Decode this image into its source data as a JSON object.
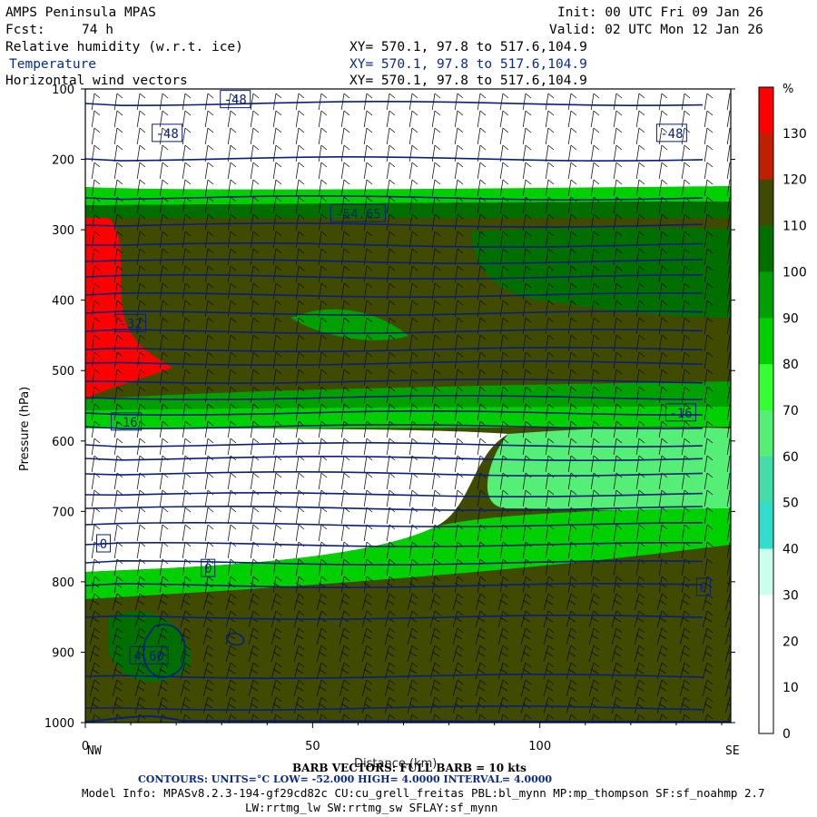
{
  "header": {
    "model": "AMPS Peninsula MPAS",
    "init": "Init: 00 UTC Fri 09 Jan 26",
    "fcst_label": "Fcst:",
    "fcst_value": "74 h",
    "valid": "Valid: 02 UTC Mon 12 Jan 26",
    "fields": [
      {
        "name": "Relative humidity (w.r.t. ice)",
        "xy": "XY= 570.1, 97.8 to 517.6,104.9"
      },
      {
        "name": "Temperature",
        "xy": "XY= 570.1, 97.8 to 517.6,104.9"
      },
      {
        "name": "Horizontal wind vectors",
        "xy": "XY= 570.1, 97.8 to 517.6,104.9"
      }
    ]
  },
  "chart_data": {
    "type": "heatmap",
    "ylabel": "Pressure (hPa)",
    "xlabel": "Distance (km)",
    "x_ticks": [
      "0",
      "50",
      "100"
    ],
    "y_ticks": [
      "100",
      "200",
      "300",
      "400",
      "500",
      "600",
      "700",
      "800",
      "900",
      "1000"
    ],
    "xlim": [
      0,
      142
    ],
    "ylim": [
      1000,
      100
    ],
    "left_end": "NW",
    "right_end": "SE",
    "colorbar": {
      "unit": "%",
      "levels": [
        "130",
        "120",
        "110",
        "100",
        "90",
        "80",
        "70",
        "60",
        "50",
        "40",
        "30",
        "20",
        "10",
        "0"
      ],
      "colors": [
        "#ff0000",
        "#c02000",
        "#404a00",
        "#006f00",
        "#00a000",
        "#00d000",
        "#33ff33",
        "#55ee77",
        "#44ddaa",
        "#33ddcc",
        "#ccffee",
        "#ffffff",
        "#ffffff",
        "#ffffff"
      ]
    },
    "temperature_contour_labels": [
      {
        "text": "-48",
        "x": 33,
        "p": 115
      },
      {
        "text": "-48",
        "x": 18,
        "p": 163
      },
      {
        "text": "-48",
        "x": 129,
        "p": 163
      },
      {
        "text": "-54.65",
        "x": 60,
        "p": 277
      },
      {
        "text": "-32",
        "x": 10,
        "p": 433
      },
      {
        "text": "-16",
        "x": 9,
        "p": 573
      },
      {
        "text": "-16",
        "x": 131,
        "p": 560
      },
      {
        "text": "0",
        "x": 4,
        "p": 746
      },
      {
        "text": "0",
        "x": 27,
        "p": 781
      },
      {
        "text": "0",
        "x": 136,
        "p": 808
      },
      {
        "text": "4.60",
        "x": 14,
        "p": 905
      }
    ],
    "barb_note": "BARB VECTORS: FULL BARB = 10 kts"
  },
  "footer": {
    "contours": "CONTOURS:  UNITS=°C  LOW= -52.000       HIGH=  4.0000       INTERVAL=   4.0000",
    "model_info": "Model Info: MPASv8.2.3-194-gf29cd82c CU:cu_grell_freitas PBL:bl_mynn MP:mp_thompson SF:sf_noahmp 2.7",
    "model_info2": "LW:rrtmg_lw SW:rrtmg_sw SFLAY:sf_mynn"
  },
  "colors": {
    "contour": "#0a1f7a",
    "axis": "#000000"
  }
}
